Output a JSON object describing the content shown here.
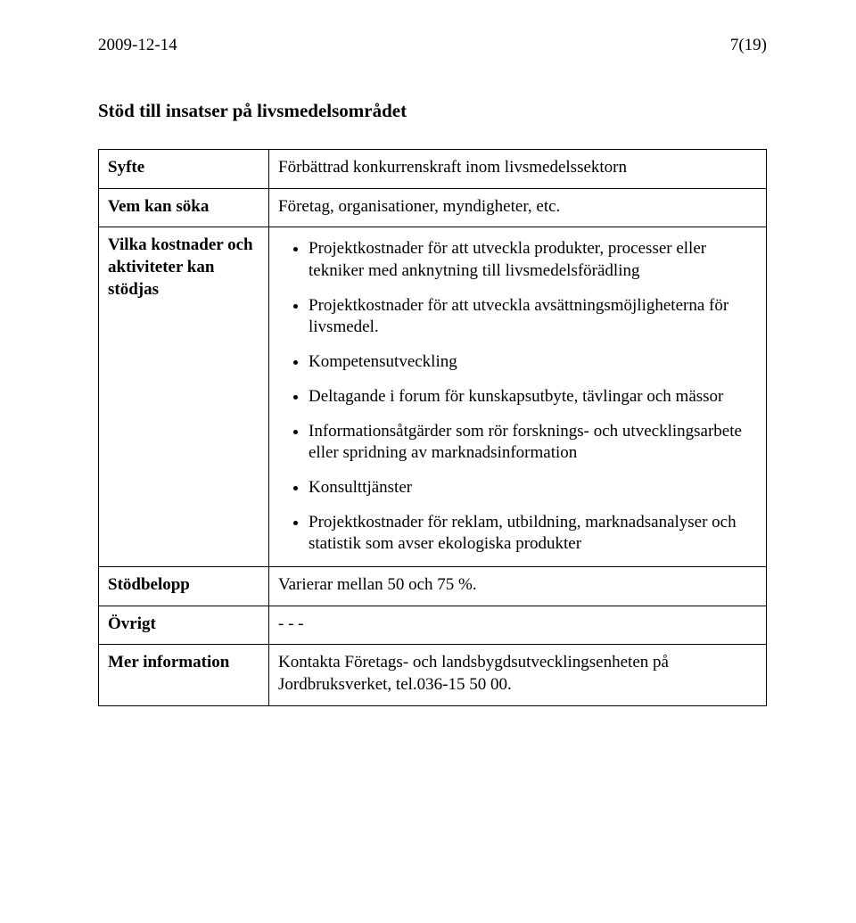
{
  "header": {
    "date": "2009-12-14",
    "page": "7(19)"
  },
  "section_title": "Stöd till insatser på livsmedelsområdet",
  "rows": {
    "syfte": {
      "label": "Syfte",
      "text": "Förbättrad konkurrenskraft inom livsmedelssektorn"
    },
    "vem": {
      "label": "Vem kan söka",
      "text": "Företag, organisationer, myndigheter, etc."
    },
    "vilka": {
      "label": "Vilka kostnader och aktiviteter kan stödjas",
      "bullets": [
        "Projektkostnader för att utveckla produkter, processer eller tekniker med anknytning till livsmedelsförädling",
        "Projektkostnader för att utveckla avsättningsmöjligheterna för livsmedel.",
        "Kompetensutveckling",
        "Deltagande i forum för kunskapsutbyte, tävlingar och mässor",
        "Informationsåtgärder som rör forsknings- och utvecklingsarbete eller spridning av marknadsinformation",
        "Konsulttjänster",
        "Projektkostnader för reklam, utbildning, marknadsanalyser och statistik som avser ekologiska produkter"
      ]
    },
    "stodbelopp": {
      "label": "Stödbelopp",
      "text": "Varierar mellan 50 och 75 %."
    },
    "ovrigt": {
      "label": "Övrigt",
      "text": " - - -"
    },
    "mer": {
      "label": "Mer information",
      "text": "Kontakta Företags- och landsbygdsutvecklingsenheten på Jordbruksverket, tel.036-15 50 00."
    }
  }
}
